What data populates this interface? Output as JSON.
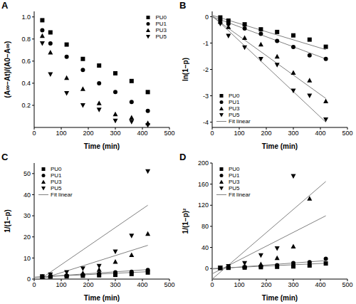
{
  "chart_data": [
    {
      "type": "scatter",
      "title": "A",
      "x_label": "Time (min)",
      "y_label": "(A∞−At)/(A0−A∞)",
      "x": [
        30,
        60,
        120,
        180,
        240,
        300,
        360,
        420
      ],
      "xlim": [
        0,
        500
      ],
      "xticks": [
        0,
        100,
        200,
        300,
        400,
        500
      ],
      "ylim": [
        0,
        1.05
      ],
      "yticks": [
        0.2,
        0.4,
        0.6,
        0.8,
        {
          "value": 1,
          "label": "1.0"
        }
      ],
      "legend": "upper right",
      "series": [
        {
          "name": "PU0",
          "color": "#000000",
          "marker": "square",
          "values": [
            0.97,
            0.86,
            0.75,
            0.62,
            0.56,
            0.49,
            0.42,
            0.32
          ]
        },
        {
          "name": "PU1",
          "color": "#000000",
          "marker": "circle",
          "values": [
            0.88,
            0.76,
            0.64,
            0.52,
            0.4,
            0.32,
            0.23,
            0.15
          ]
        },
        {
          "name": "PU3",
          "color": "#000000",
          "marker": "triangle",
          "values": [
            0.83,
            0.68,
            0.45,
            0.35,
            0.22,
            0.12,
            0.09,
            0.04
          ]
        },
        {
          "name": "PU5",
          "color": "#000000",
          "marker": "triangle-down",
          "values": [
            0.76,
            0.48,
            0.31,
            0.2,
            0.16,
            0.06,
            0.05,
            0.02
          ]
        }
      ]
    },
    {
      "type": "scatter",
      "title": "B",
      "x_label": "Time (min)",
      "y_label": "ln(1−p)",
      "x": [
        30,
        60,
        120,
        180,
        240,
        300,
        360,
        420
      ],
      "xlim": [
        0,
        500
      ],
      "xticks": [
        0,
        100,
        200,
        300,
        400,
        500
      ],
      "ylim": [
        -4.2,
        0.2
      ],
      "yticks": [
        -4,
        -3,
        -2,
        -1,
        0
      ],
      "legend": "lower left",
      "fit_name": "Fit linear",
      "fit_x": [
        0,
        420
      ],
      "series": [
        {
          "name": "PU0",
          "color": "#000000",
          "marker": "square",
          "values": [
            -0.03,
            -0.15,
            -0.29,
            -0.48,
            -0.58,
            -0.71,
            -0.87,
            -1.14
          ],
          "fit": [
            0.05,
            -1.25
          ]
        },
        {
          "name": "PU1",
          "color": "#000000",
          "marker": "circle",
          "values": [
            -0.13,
            -0.27,
            -0.45,
            -0.65,
            -0.92,
            -1.15,
            -1.47,
            -1.6
          ],
          "fit": [
            0,
            -1.6
          ]
        },
        {
          "name": "PU3",
          "color": "#000000",
          "marker": "triangle",
          "values": [
            -0.19,
            -0.39,
            -0.8,
            -1.05,
            -1.51,
            -2.12,
            -2.41,
            -3.2
          ],
          "fit": [
            0,
            -3.1
          ]
        },
        {
          "name": "PU5",
          "color": "#000000",
          "marker": "triangle-down",
          "values": [
            -0.27,
            -0.73,
            -1.17,
            -1.61,
            -1.83,
            -2.81,
            -3.0,
            -3.9
          ],
          "fit": [
            0.05,
            -4.0
          ]
        }
      ]
    },
    {
      "type": "scatter",
      "title": "C",
      "x_label": "Time (min)",
      "y_label": "1/(1−p)",
      "x": [
        30,
        60,
        120,
        180,
        240,
        300,
        360,
        420
      ],
      "xlim": [
        0,
        500
      ],
      "xticks": [
        0,
        100,
        200,
        300,
        400,
        500
      ],
      "ylim": [
        0,
        55
      ],
      "yticks": [
        0,
        10,
        20,
        30,
        40,
        50
      ],
      "legend": "upper left",
      "fit_name": "Fit linear",
      "fit_x": [
        0,
        420
      ],
      "series": [
        {
          "name": "PU0",
          "color": "#000000",
          "marker": "square",
          "values": [
            1.03,
            1.16,
            1.33,
            1.6,
            1.8,
            2.0,
            2.4,
            3.1
          ],
          "fit": [
            0.9,
            3.5
          ]
        },
        {
          "name": "PU1",
          "color": "#000000",
          "marker": "circle",
          "values": [
            1.14,
            1.3,
            1.6,
            1.9,
            2.5,
            3.2,
            3.5,
            4.3
          ],
          "fit": [
            0.8,
            4.5
          ]
        },
        {
          "name": "PU3",
          "color": "#000000",
          "marker": "triangle",
          "values": [
            1.2,
            1.5,
            2.2,
            2.9,
            4.5,
            8.3,
            11.5,
            21.5
          ],
          "fit": [
            -1,
            16
          ]
        },
        {
          "name": "PU5",
          "color": "#000000",
          "marker": "triangle-down",
          "values": [
            1.3,
            2.1,
            3.2,
            5.0,
            6.2,
            13.0,
            20.5,
            51
          ],
          "fit": [
            -2,
            35
          ]
        }
      ]
    },
    {
      "type": "scatter",
      "title": "D",
      "x_label": "Time (min)",
      "y_label": "1/(1−p)²",
      "x": [
        30,
        60,
        120,
        180,
        240,
        300,
        360,
        420
      ],
      "xlim": [
        0,
        500
      ],
      "xticks": [
        0,
        100,
        200,
        300,
        400,
        500
      ],
      "ylim": [
        -20,
        200
      ],
      "yticks": [
        0,
        40,
        80,
        120,
        160,
        200
      ],
      "legend": "upper left",
      "fit_name": "Fit linear",
      "fit_x": [
        0,
        420
      ],
      "series": [
        {
          "name": "PU0",
          "color": "#000000",
          "marker": "square",
          "values": [
            1.06,
            1.35,
            1.77,
            2.56,
            3.24,
            4.0,
            5.76,
            9.6
          ],
          "fit": [
            0,
            10
          ]
        },
        {
          "name": "PU1",
          "color": "#000000",
          "marker": "circle",
          "values": [
            1.3,
            1.7,
            2.6,
            3.6,
            6.3,
            10.2,
            12,
            18.5
          ],
          "fit": [
            -1,
            15
          ]
        },
        {
          "name": "PU3",
          "color": "#000000",
          "marker": "triangle",
          "values": [
            1.4,
            2.3,
            4.8,
            8.4,
            20,
            42,
            133,
            null
          ],
          "fit": [
            -10,
            100
          ]
        },
        {
          "name": "PU5",
          "color": "#000000",
          "marker": "triangle-down",
          "values": [
            1.7,
            4.4,
            10,
            25,
            38,
            175,
            null,
            null
          ],
          "fit": [
            -20,
            165
          ]
        }
      ]
    }
  ]
}
